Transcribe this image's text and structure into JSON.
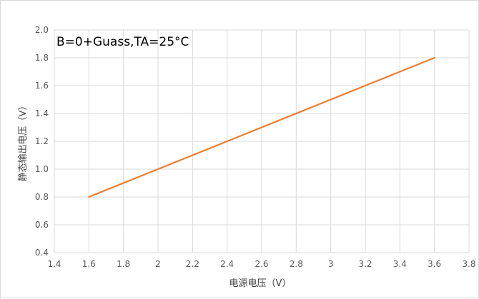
{
  "chart_data": {
    "type": "line",
    "title": "",
    "annotation": "B=0+Guass,TA=25°C",
    "xlabel": "电源电压（V）",
    "ylabel": "静态输出电压（V）",
    "xlim": [
      1.4,
      3.8
    ],
    "ylim": [
      0.4,
      2.0
    ],
    "xticks": [
      "1.4",
      "1.6",
      "1.8",
      "2",
      "2.2",
      "2.4",
      "2.6",
      "2.8",
      "3",
      "3.2",
      "3.4",
      "3.6",
      "3.8"
    ],
    "yticks": [
      "0.4",
      "0.6",
      "0.8",
      "1.0",
      "1.2",
      "1.4",
      "1.6",
      "1.8",
      "2.0"
    ],
    "grid": true,
    "legend": "none",
    "series": [
      {
        "color": "#ED7D31",
        "x": [
          1.6,
          3.6
        ],
        "y": [
          0.8,
          1.8
        ]
      }
    ]
  }
}
